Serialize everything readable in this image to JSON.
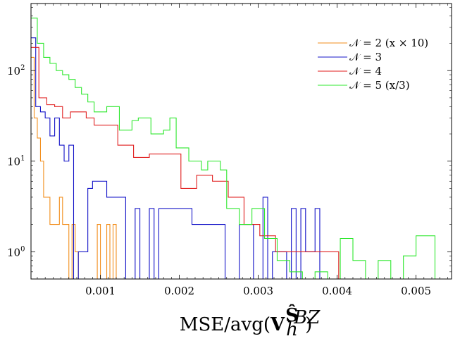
{
  "chart_data": {
    "type": "histogram-step",
    "title": "",
    "xlabel": {
      "base": "MSE/avg(V",
      "superscript": "Ŝ",
      "superscript_sub": "BZ",
      "subscript": "h",
      "close": ")"
    },
    "ylabel": "",
    "yscale": "log",
    "xlim": [
      0.00012,
      0.00545
    ],
    "ylim": [
      0.5,
      550
    ],
    "xticks": [
      {
        "value": 0.001,
        "label": "0.001"
      },
      {
        "value": 0.002,
        "label": "0.002"
      },
      {
        "value": 0.003,
        "label": "0.003"
      },
      {
        "value": 0.004,
        "label": "0.004"
      },
      {
        "value": 0.005,
        "label": "0.005"
      }
    ],
    "yticks": [
      {
        "value": 1,
        "base": "10",
        "exp": "0"
      },
      {
        "value": 10,
        "base": "10",
        "exp": "1"
      },
      {
        "value": 100,
        "base": "10",
        "exp": "2"
      }
    ],
    "grid": false,
    "legend_position": "top-right",
    "series": [
      {
        "name": "𝒩 = 2 (x × 10)",
        "color": "#f28e1c",
        "edges": [
          0.00012,
          0.00016,
          0.0002,
          0.00024,
          0.00028,
          0.00032,
          0.00036,
          0.0004,
          0.00044,
          0.00048,
          0.00052,
          0.00056,
          0.0006,
          0.00064,
          0.00068,
          0.00072,
          0.00076,
          0.0008,
          0.00084,
          0.00088,
          0.00092,
          0.00096,
          0.001,
          0.00104,
          0.00108,
          0.00112,
          0.00116,
          0.0012
        ],
        "counts": [
          140,
          30,
          18,
          10,
          4,
          4,
          2,
          2,
          2,
          4,
          2,
          2,
          0,
          2,
          1,
          0,
          0,
          0,
          0,
          0,
          0,
          2,
          0,
          0,
          2,
          0,
          2
        ]
      },
      {
        "name": "𝒩 = 3",
        "color": "#1414c8",
        "edges": [
          0.00012,
          0.00018,
          0.00024,
          0.0003,
          0.00036,
          0.00042,
          0.00048,
          0.00054,
          0.0006,
          0.00066,
          0.00072,
          0.00078,
          0.00084,
          0.0009,
          0.00096,
          0.00102,
          0.00108,
          0.00114,
          0.0012,
          0.00126,
          0.00132,
          0.00138,
          0.00144,
          0.0015,
          0.00156,
          0.00162,
          0.00168,
          0.00174,
          0.0018,
          0.00186,
          0.00192,
          0.00198,
          0.00204,
          0.0021,
          0.00216,
          0.00222,
          0.00228,
          0.00234,
          0.0024,
          0.00246,
          0.00252,
          0.00258,
          0.00264,
          0.0027,
          0.00276,
          0.00282,
          0.00288,
          0.00294,
          0.003,
          0.00306,
          0.00312,
          0.00318,
          0.00324,
          0.0033,
          0.00336,
          0.00342,
          0.00348,
          0.00354,
          0.0036,
          0.00366,
          0.00372,
          0.00378
        ],
        "counts": [
          230,
          40,
          35,
          30,
          19,
          30,
          15,
          10,
          15,
          0,
          1,
          1,
          5,
          6,
          6,
          6,
          4,
          4,
          4,
          4,
          0,
          0,
          3,
          0,
          0,
          3,
          0,
          3,
          3,
          3,
          3,
          3,
          3,
          3,
          2,
          2,
          2,
          2,
          2,
          2,
          2,
          0,
          0,
          0,
          2,
          2,
          2,
          0,
          0,
          4,
          0,
          1,
          1,
          1,
          0,
          3,
          0,
          3,
          1,
          1,
          3,
          0
        ]
      },
      {
        "name": "𝒩 = 4",
        "color": "#e01e1e",
        "edges": [
          0.00012,
          0.00022,
          0.00032,
          0.00042,
          0.00052,
          0.00062,
          0.00072,
          0.00082,
          0.00092,
          0.00102,
          0.00112,
          0.00122,
          0.00132,
          0.00142,
          0.00152,
          0.00162,
          0.00172,
          0.00182,
          0.00192,
          0.00202,
          0.00212,
          0.00222,
          0.00232,
          0.00242,
          0.00252,
          0.00262,
          0.00272,
          0.00282,
          0.00292,
          0.00302,
          0.00312,
          0.00322,
          0.00332,
          0.00342,
          0.00352,
          0.00362,
          0.00372,
          0.00382,
          0.00392,
          0.00402
        ],
        "counts": [
          180,
          50,
          42,
          40,
          30,
          35,
          35,
          30,
          25,
          25,
          25,
          15,
          15,
          11,
          11,
          12,
          12,
          12,
          12,
          5,
          5,
          7,
          7,
          6,
          6,
          4,
          4,
          2,
          2,
          1.5,
          1.5,
          1,
          1,
          1,
          1,
          1,
          1,
          1,
          1
        ]
      },
      {
        "name": "𝒩 = 5 (x/3)",
        "color": "#2ee82e",
        "edges": [
          0.00012,
          0.0002,
          0.00028,
          0.00036,
          0.00044,
          0.00052,
          0.0006,
          0.00068,
          0.00076,
          0.00084,
          0.00092,
          0.001,
          0.00108,
          0.00116,
          0.00124,
          0.00132,
          0.0014,
          0.00148,
          0.00156,
          0.00164,
          0.00172,
          0.0018,
          0.00188,
          0.00196,
          0.00204,
          0.00212,
          0.0022,
          0.00228,
          0.00236,
          0.00244,
          0.00252,
          0.0026,
          0.00268,
          0.00276,
          0.00284,
          0.00292,
          0.003,
          0.00308,
          0.00316,
          0.00324,
          0.00332,
          0.0034,
          0.00348,
          0.00356,
          0.00364,
          0.00372,
          0.0038,
          0.00388,
          0.00396,
          0.00404,
          0.00412,
          0.0042,
          0.00428,
          0.00436,
          0.00444,
          0.00452,
          0.0046,
          0.00468,
          0.00476,
          0.00484,
          0.00492,
          0.005,
          0.00508,
          0.00516,
          0.00524
        ],
        "counts": [
          380,
          200,
          140,
          120,
          100,
          90,
          80,
          65,
          55,
          45,
          35,
          35,
          40,
          40,
          22,
          22,
          28,
          30,
          30,
          20,
          20,
          22,
          30,
          14,
          14,
          10,
          10,
          8,
          10,
          10,
          8,
          3,
          3,
          2,
          2,
          3,
          3,
          1.4,
          1.4,
          0.8,
          0.8,
          0.6,
          0.6,
          0.5,
          0.5,
          0.6,
          0.6,
          0.5,
          0.5,
          1.4,
          1.4,
          0.8,
          0.8,
          0.5,
          0.5,
          0.8,
          0.8,
          0.5,
          0.5,
          0.9,
          0.9,
          1.5,
          1.5,
          1.5
        ]
      }
    ]
  }
}
